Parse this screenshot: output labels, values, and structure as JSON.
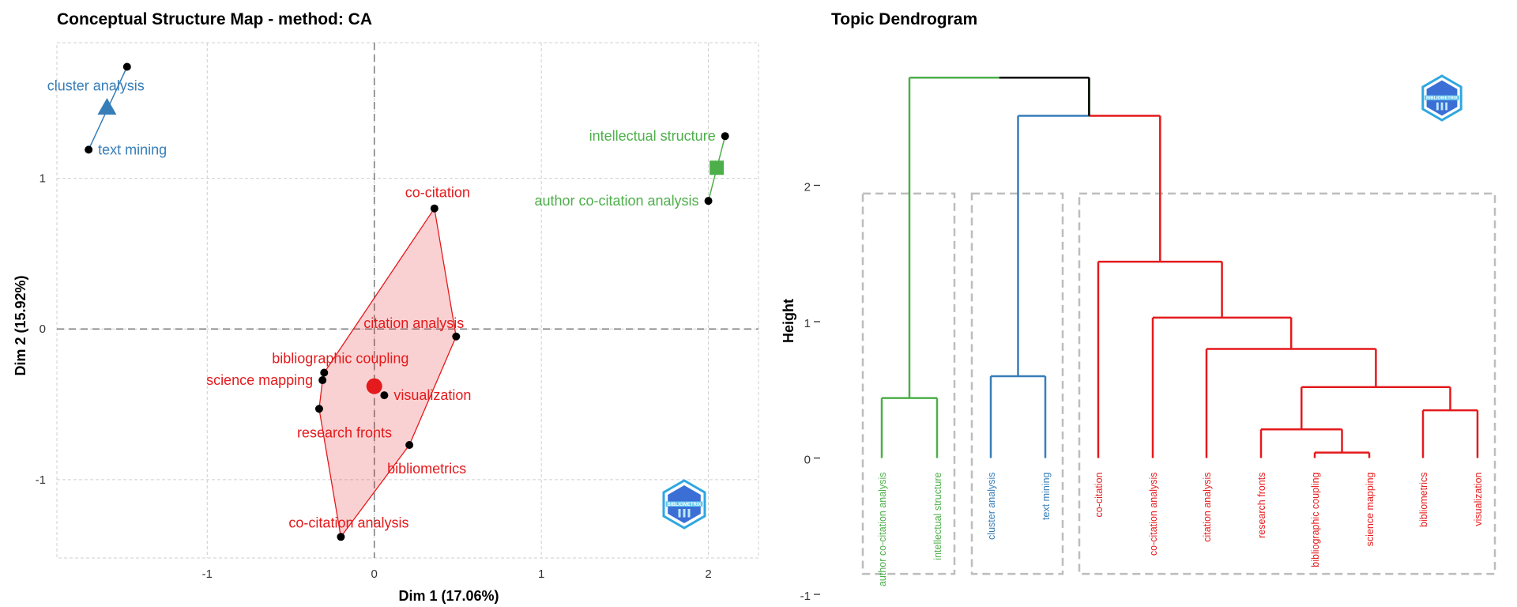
{
  "colors": {
    "red": "#e41a1c",
    "blue": "#377eb8",
    "green": "#4daf4a",
    "black": "#000000",
    "box": "#bdbdbd"
  },
  "chart_data": [
    {
      "type": "scatter",
      "title": "Conceptual Structure Map - method: CA",
      "xlabel": "Dim 1 (17.06%)",
      "ylabel": "Dim 2 (15.92%)",
      "xlim": [
        -1.9,
        2.3
      ],
      "ylim": [
        -1.52,
        1.9
      ],
      "xticks": [
        -1,
        0,
        1,
        2
      ],
      "yticks": [
        -1,
        0,
        1
      ],
      "grid": true,
      "logo_text": "BIBLIOMETRIX",
      "series": [
        {
          "color": "#377eb8",
          "centroid": {
            "x": -1.6,
            "y": 1.47,
            "shape": "triangle"
          },
          "points": [
            {
              "label": "cluster analysis",
              "x": -1.48,
              "y": 1.74,
              "label_pos": "below-left"
            },
            {
              "label": "text mining",
              "x": -1.71,
              "y": 1.19,
              "label_pos": "right"
            }
          ]
        },
        {
          "color": "#4daf4a",
          "centroid": {
            "x": 2.05,
            "y": 1.07,
            "shape": "square"
          },
          "points": [
            {
              "label": "intellectual structure",
              "x": 2.1,
              "y": 1.28,
              "label_pos": "left"
            },
            {
              "label": "author co-citation analysis",
              "x": 2.0,
              "y": 0.85,
              "label_pos": "left"
            }
          ]
        },
        {
          "color": "#e41a1c",
          "centroid": {
            "x": 0.0,
            "y": -0.38,
            "shape": "circle"
          },
          "points": [
            {
              "label": "co-citation",
              "x": 0.36,
              "y": 0.8,
              "label_pos": "above"
            },
            {
              "label": "citation analysis",
              "x": 0.49,
              "y": -0.05,
              "label_pos": "above-left"
            },
            {
              "label": "bibliographic coupling",
              "x": -0.3,
              "y": -0.29,
              "label_pos": "above-right"
            },
            {
              "label": "science mapping",
              "x": -0.31,
              "y": -0.34,
              "label_pos": "left"
            },
            {
              "label": "visualization",
              "x": 0.06,
              "y": -0.44,
              "label_pos": "right"
            },
            {
              "label": "research fronts",
              "x": -0.33,
              "y": -0.53,
              "label_pos": "below-right"
            },
            {
              "label": "bibliometrics",
              "x": 0.21,
              "y": -0.77,
              "label_pos": "below-right"
            },
            {
              "label": "co-citation analysis",
              "x": -0.2,
              "y": -1.38,
              "label_pos": "above-right"
            }
          ],
          "hull": [
            "co-citation",
            "citation analysis",
            "bibliometrics",
            "co-citation analysis",
            "research fronts",
            "science mapping",
            "bibliographic coupling"
          ]
        }
      ]
    },
    {
      "type": "dendrogram",
      "title": "Topic Dendrogram",
      "ylabel": "Height",
      "ylim": [
        -1,
        2.95
      ],
      "yticks": [
        -1,
        0,
        1,
        2
      ],
      "logo_text": "BIBLIOMETRIX",
      "leaves": [
        {
          "label": "author co-citation analysis",
          "color": "#4daf4a"
        },
        {
          "label": "intellectual structure",
          "color": "#4daf4a"
        },
        {
          "label": "cluster analysis",
          "color": "#377eb8"
        },
        {
          "label": "text mining",
          "color": "#377eb8"
        },
        {
          "label": "co-citation",
          "color": "#e41a1c"
        },
        {
          "label": "co-citation analysis",
          "color": "#e41a1c"
        },
        {
          "label": "citation analysis",
          "color": "#e41a1c"
        },
        {
          "label": "research fronts",
          "color": "#e41a1c"
        },
        {
          "label": "bibliographic coupling",
          "color": "#e41a1c"
        },
        {
          "label": "science mapping",
          "color": "#e41a1c"
        },
        {
          "label": "bibliometrics",
          "color": "#e41a1c"
        },
        {
          "label": "visualization",
          "color": "#e41a1c"
        }
      ],
      "merges": [
        {
          "id": "g1",
          "a": "L0",
          "b": "L1",
          "height": 0.44,
          "color": "#4daf4a"
        },
        {
          "id": "b1",
          "a": "L2",
          "b": "L3",
          "height": 0.6,
          "color": "#377eb8"
        },
        {
          "id": "r1",
          "a": "L8",
          "b": "L9",
          "height": 0.04,
          "color": "#e41a1c"
        },
        {
          "id": "r2",
          "a": "L7",
          "b": "r1",
          "height": 0.21,
          "color": "#e41a1c"
        },
        {
          "id": "r3",
          "a": "L10",
          "b": "L11",
          "height": 0.35,
          "color": "#e41a1c"
        },
        {
          "id": "r4",
          "a": "r2",
          "b": "r3",
          "height": 0.52,
          "color": "#e41a1c"
        },
        {
          "id": "r5",
          "a": "L6",
          "b": "r4",
          "height": 0.8,
          "color": "#e41a1c"
        },
        {
          "id": "r6",
          "a": "L5",
          "b": "r5",
          "height": 1.03,
          "color": "#e41a1c"
        },
        {
          "id": "r7",
          "a": "L4",
          "b": "r6",
          "height": 1.44,
          "color": "#e41a1c"
        },
        {
          "id": "br",
          "a": "b1",
          "b": "r7",
          "height": 2.51,
          "color": "#e41a1c"
        },
        {
          "id": "root",
          "a": "g1",
          "b": "br",
          "height": 2.79,
          "color": "#4daf4a"
        }
      ],
      "cluster_boxes": [
        {
          "from": 0,
          "to": 1
        },
        {
          "from": 2,
          "to": 3
        },
        {
          "from": 4,
          "to": 11
        }
      ],
      "box_top_height": 1.94,
      "box_bottom_height": -0.85
    }
  ]
}
